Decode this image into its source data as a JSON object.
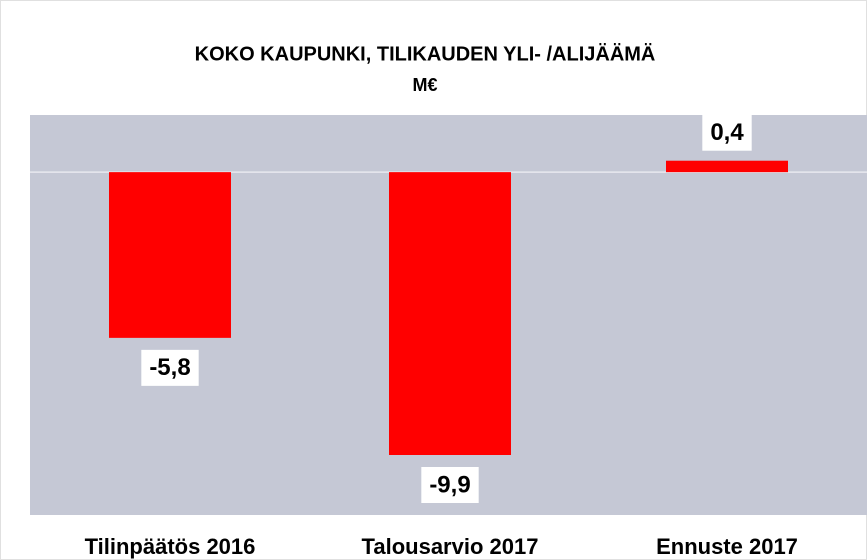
{
  "chart_data": {
    "type": "bar",
    "title": "KOKO KAUPUNKI, TILIKAUDEN YLI- /ALIJÄÄMÄ",
    "subtitle": "M€",
    "categories": [
      "Tilinpäätös 2016",
      "Talousarvio 2017",
      "Ennuste 2017"
    ],
    "values": [
      -5.8,
      -9.9,
      0.4
    ],
    "value_labels": [
      "-5,8",
      "-9,9",
      "0,4"
    ],
    "color": "#ff0000",
    "ylim": [
      -12,
      2
    ]
  }
}
